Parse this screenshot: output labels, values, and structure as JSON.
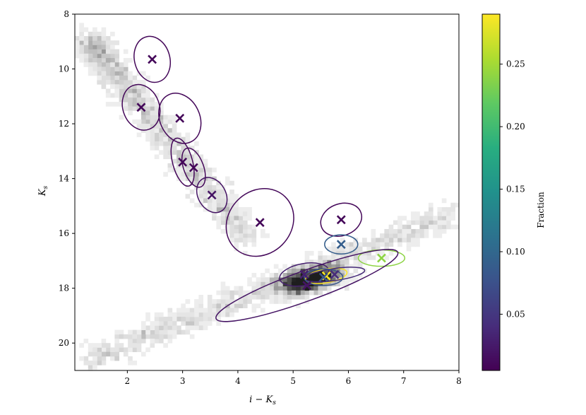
{
  "chart_data": {
    "type": "scatter",
    "title": "",
    "xlabel": "i − K",
    "xlabel_sub": "s",
    "ylabel": "K",
    "ylabel_sub": "s",
    "xlim": [
      1.05,
      8.0
    ],
    "ylim": [
      21.0,
      8.0
    ],
    "x_inverted": false,
    "y_inverted": true,
    "xticks": [
      2,
      3,
      4,
      5,
      6,
      7,
      8
    ],
    "yticks": [
      8,
      10,
      12,
      14,
      16,
      18,
      20
    ],
    "grid": false,
    "background": "2D histogram of sources (grayscale density)",
    "colorbar": {
      "label": "Fraction",
      "colormap": "viridis",
      "range": [
        0.005,
        0.29
      ],
      "ticks": [
        0.05,
        0.1,
        0.15,
        0.2,
        0.25
      ],
      "tick_labels": [
        "0.05",
        "0.10",
        "0.15",
        "0.20",
        "0.25"
      ]
    },
    "components": [
      {
        "x": 2.45,
        "y": 9.65,
        "fraction": 0.01,
        "rx": 0.32,
        "ry": 0.85,
        "angle_deg": -15
      },
      {
        "x": 2.25,
        "y": 11.4,
        "fraction": 0.01,
        "rx": 0.33,
        "ry": 0.85,
        "angle_deg": -20
      },
      {
        "x": 2.95,
        "y": 11.8,
        "fraction": 0.01,
        "rx": 0.36,
        "ry": 0.95,
        "angle_deg": -25
      },
      {
        "x": 3.0,
        "y": 13.4,
        "fraction": 0.01,
        "rx": 0.18,
        "ry": 0.9,
        "angle_deg": -15
      },
      {
        "x": 3.2,
        "y": 13.6,
        "fraction": 0.01,
        "rx": 0.18,
        "ry": 0.75,
        "angle_deg": -20
      },
      {
        "x": 3.53,
        "y": 14.6,
        "fraction": 0.02,
        "rx": 0.25,
        "ry": 0.68,
        "angle_deg": -30
      },
      {
        "x": 4.4,
        "y": 15.6,
        "fraction": 0.01,
        "rx": 0.65,
        "ry": 1.15,
        "angle_deg": -45
      },
      {
        "x": 5.87,
        "y": 15.5,
        "fraction": 0.01,
        "rx": 0.38,
        "ry": 0.58,
        "angle_deg": -20
      },
      {
        "x": 5.87,
        "y": 16.4,
        "fraction": 0.09,
        "rx": 0.3,
        "ry": 0.35,
        "angle_deg": 0
      },
      {
        "x": 6.6,
        "y": 16.9,
        "fraction": 0.24,
        "rx": 0.42,
        "ry": 0.3,
        "angle_deg": 0
      },
      {
        "x": 5.2,
        "y": 17.5,
        "fraction": 0.03,
        "rx": 0.45,
        "ry": 0.4,
        "angle_deg": -10
      },
      {
        "x": 5.6,
        "y": 17.55,
        "fraction": 0.29,
        "rx": 0.38,
        "ry": 0.25,
        "angle_deg": -10
      },
      {
        "x": 5.75,
        "y": 17.5,
        "fraction": 0.04,
        "rx": 0.55,
        "ry": 0.22,
        "angle_deg": -8
      },
      {
        "x": 5.55,
        "y": 17.6,
        "fraction": 0.08,
        "rx": 0.35,
        "ry": 0.3,
        "angle_deg": 0
      },
      {
        "x": 5.25,
        "y": 17.9,
        "fraction": 0.02,
        "rx": 1.75,
        "ry": 0.55,
        "angle_deg": -20
      }
    ]
  }
}
